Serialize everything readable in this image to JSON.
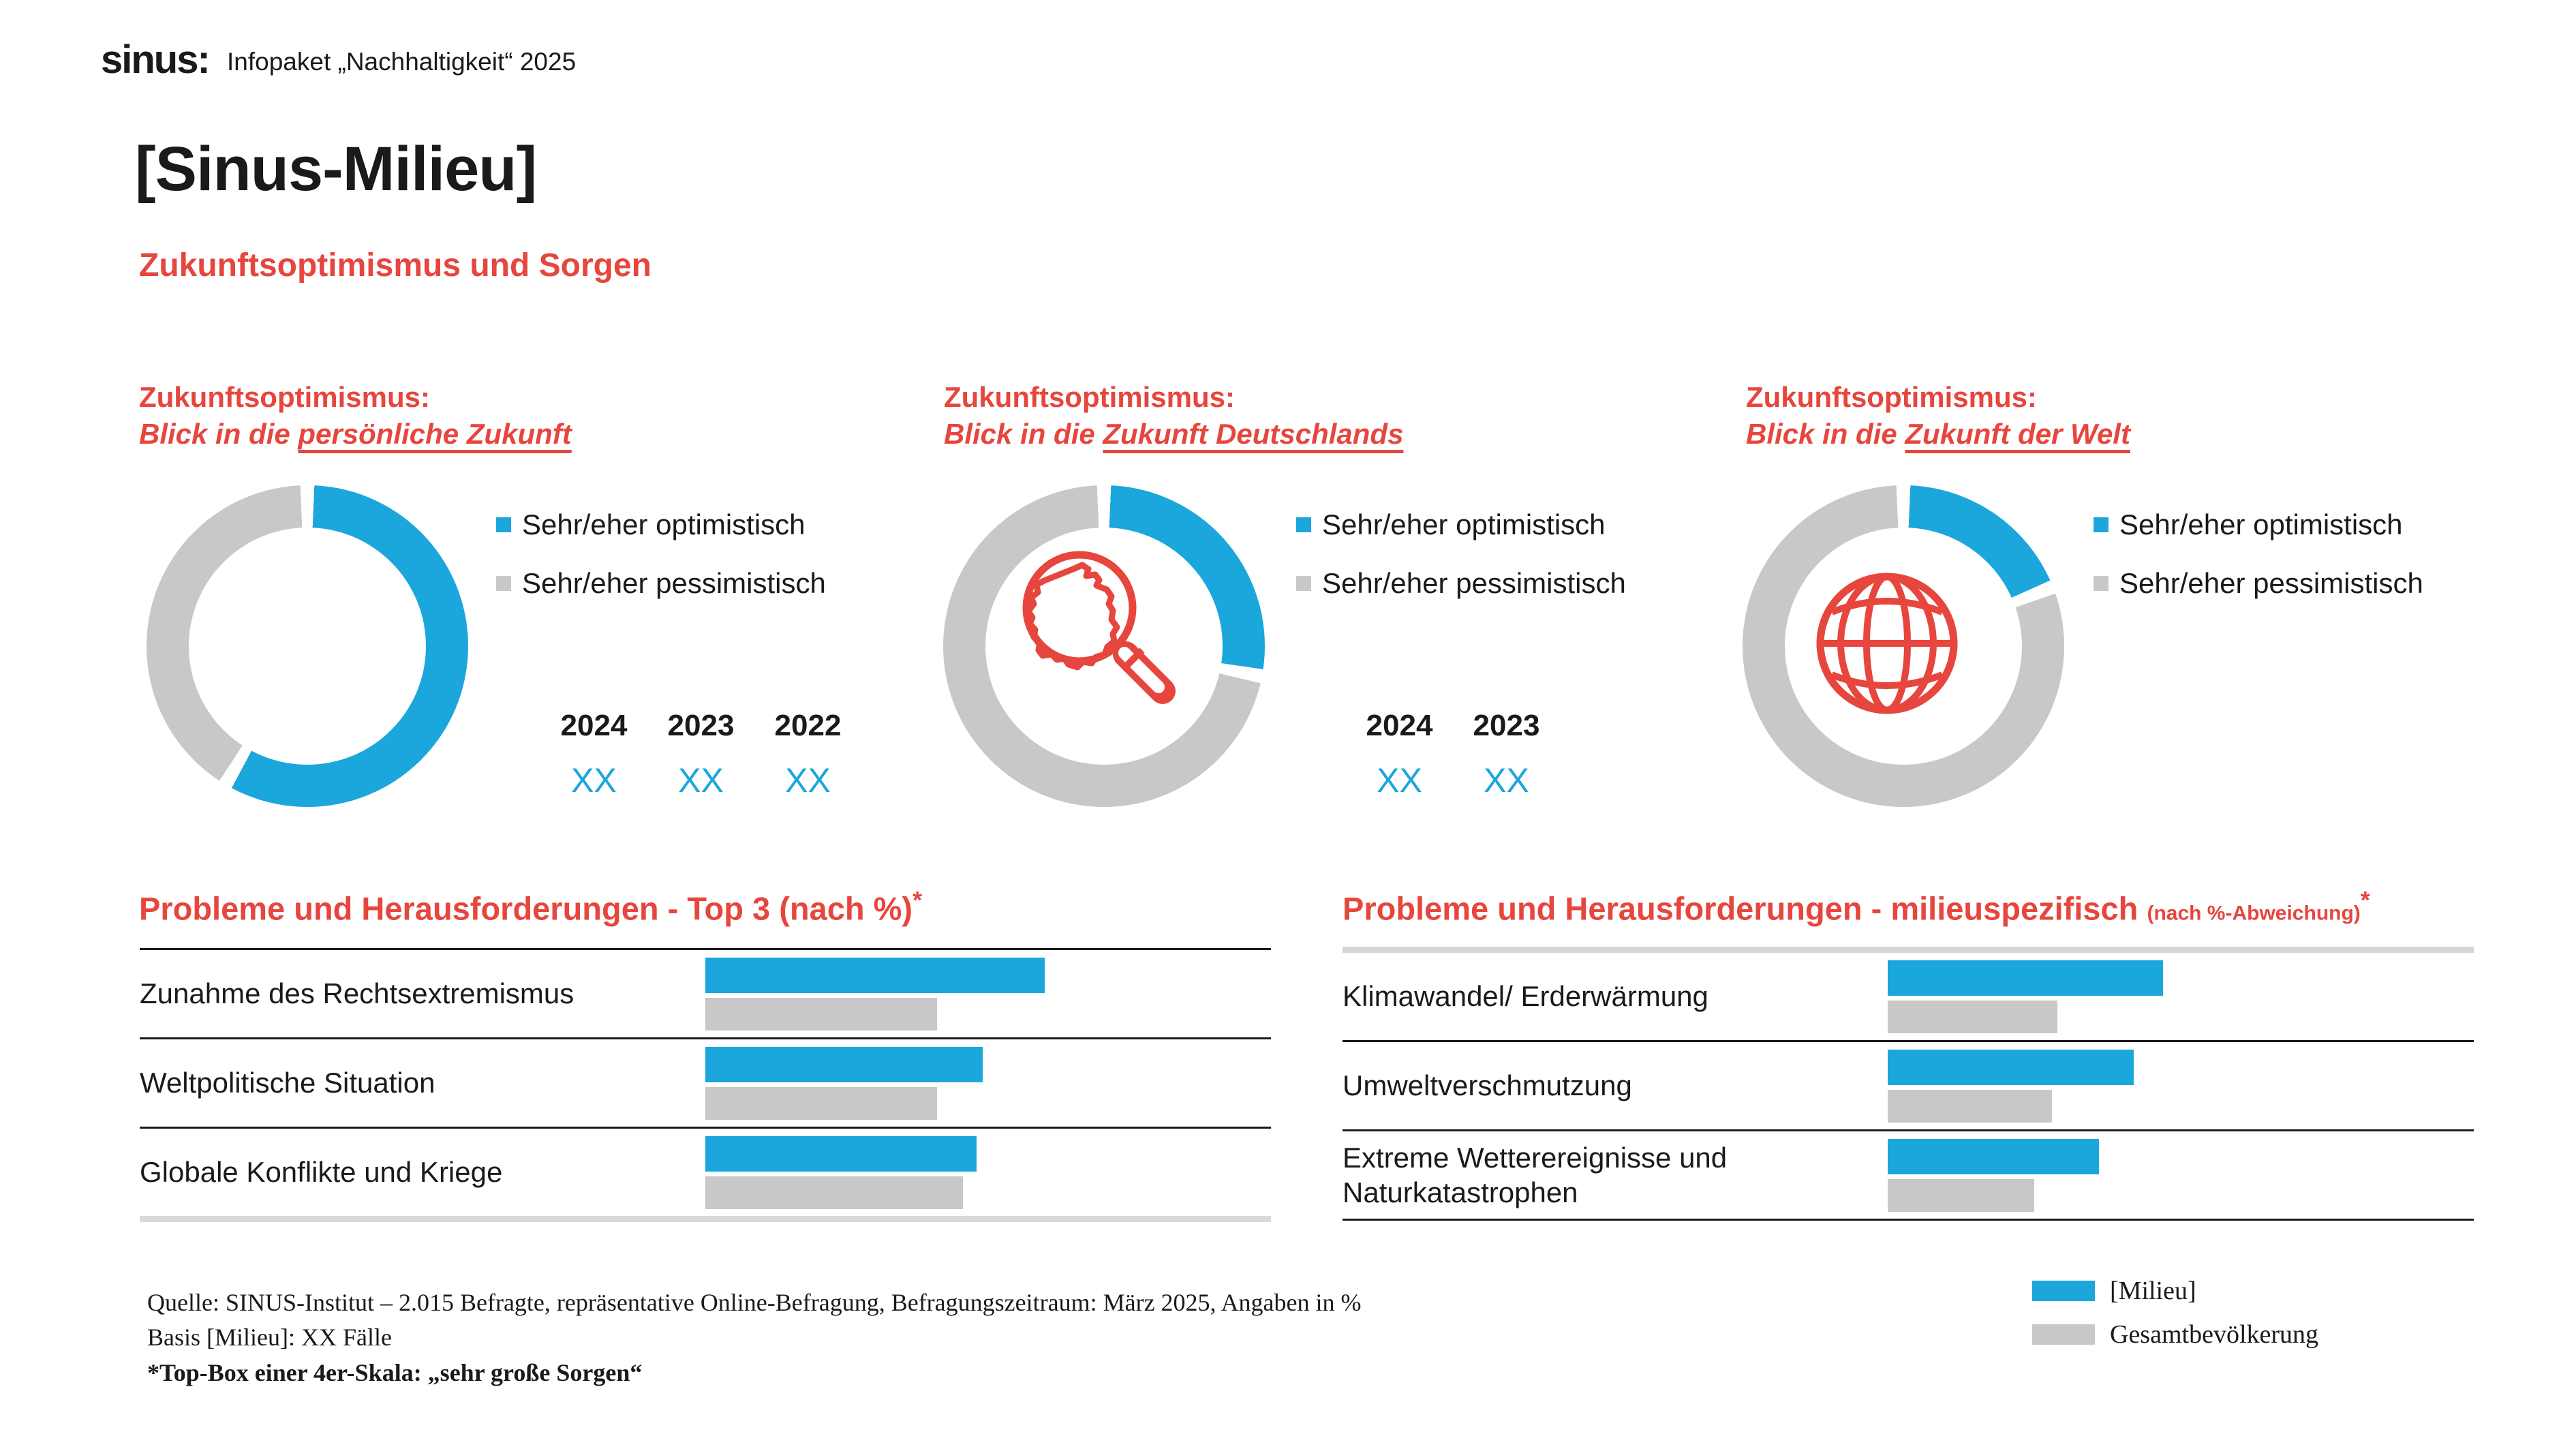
{
  "colors": {
    "blue": "#1BA6DC",
    "gray": "#C8C8C8",
    "red": "#E6463D",
    "text": "#1A1A1A"
  },
  "header": {
    "logo": "sinus:",
    "subtitle": "Infopaket „Nachhaltigkeit“ 2025"
  },
  "title": "[Sinus-Milieu]",
  "subtitle": "Zukunftsoptimismus und Sorgen",
  "donut_legend": {
    "optimistic": "Sehr/eher optimistisch",
    "pessimistic": "Sehr/eher pessimistisch"
  },
  "donuts": [
    {
      "heading1": "Zukunftsoptimismus:",
      "heading2_prefix": "Blick in die ",
      "heading2_underline": "persönliche Zukunft",
      "optimistic_pct": 58.5,
      "years": [
        {
          "year": "2024",
          "value": "XX"
        },
        {
          "year": "2023",
          "value": "XX"
        },
        {
          "year": "2022",
          "value": "XX"
        }
      ]
    },
    {
      "heading1": "Zukunftsoptimismus:",
      "heading2_prefix": "Blick in die ",
      "heading2_underline": "Zukunft Deutschlands",
      "optimistic_pct": 28,
      "icon": "germany-magnifier-icon",
      "years": [
        {
          "year": "2024",
          "value": "XX"
        },
        {
          "year": "2023",
          "value": "XX"
        }
      ]
    },
    {
      "heading1": "Zukunftsoptimismus:",
      "heading2_prefix": "Blick in die ",
      "heading2_underline": "Zukunft der Welt",
      "optimistic_pct": 19,
      "icon": "globe-icon",
      "years": []
    }
  ],
  "left_table": {
    "heading": "Probleme und Herausforderungen - Top 3 (nach %)",
    "asterisk": "*",
    "rows": [
      {
        "label": "Zunahme des Rechtsextremismus",
        "milieu": 60,
        "gesamt": 41
      },
      {
        "label": "Weltpolitische Situation",
        "milieu": 49,
        "gesamt": 41
      },
      {
        "label": "Globale Konflikte und Kriege",
        "milieu": 48,
        "gesamt": 45.5
      }
    ]
  },
  "right_table": {
    "heading": "Probleme und Herausforderungen - milieuspezifisch",
    "heading_small": "(nach %-Abweichung)",
    "asterisk": "*",
    "rows": [
      {
        "label": "Klimawandel/ Erderwärmung",
        "milieu": 47,
        "gesamt": 29
      },
      {
        "label": "Umweltverschmutzung",
        "milieu": 42,
        "gesamt": 28
      },
      {
        "label": "Extreme Wetterereignisse und Naturkatastrophen",
        "milieu": 36,
        "gesamt": 25
      }
    ]
  },
  "footer": {
    "line1": "Quelle: SINUS-Institut – 2.015 Befragte, repräsentative Online-Befragung, Befragungszeitraum: März 2025, Angaben in %",
    "line2": "Basis [Milieu]: XX Fälle",
    "line3": "*Top-Box einer 4er-Skala: „sehr große Sorgen“"
  },
  "bottom_legend": {
    "milieu": "[Milieu]",
    "gesamt": "Gesamtbevölkerung"
  },
  "chart_data": [
    {
      "type": "pie",
      "title": "Zukunftsoptimismus: Blick in die persönliche Zukunft",
      "labels": [
        "Sehr/eher optimistisch",
        "Sehr/eher pessimistisch"
      ],
      "values_visual_pct": [
        58.5,
        41.5
      ],
      "data_labels": {
        "2024": "XX",
        "2023": "XX",
        "2022": "XX"
      },
      "legend_position": "right"
    },
    {
      "type": "pie",
      "title": "Zukunftsoptimismus: Blick in die Zukunft Deutschlands",
      "labels": [
        "Sehr/eher optimistisch",
        "Sehr/eher pessimistisch"
      ],
      "values_visual_pct": [
        28,
        72
      ],
      "data_labels": {
        "2024": "XX",
        "2023": "XX"
      },
      "legend_position": "right"
    },
    {
      "type": "pie",
      "title": "Zukunftsoptimismus: Blick in die Zukunft der Welt",
      "labels": [
        "Sehr/eher optimistisch",
        "Sehr/eher pessimistisch"
      ],
      "values_visual_pct": [
        19,
        81
      ],
      "legend_position": "right"
    },
    {
      "type": "bar",
      "title": "Probleme und Herausforderungen - Top 3 (nach %)*",
      "categories": [
        "Zunahme des Rechtsextremismus",
        "Weltpolitische Situation",
        "Globale Konflikte und Kriege"
      ],
      "series": [
        {
          "name": "[Milieu]",
          "values_visual": [
            60,
            49,
            48
          ]
        },
        {
          "name": "Gesamtbevölkerung",
          "values_visual": [
            41,
            41,
            45.5
          ]
        }
      ],
      "orientation": "horizontal"
    },
    {
      "type": "bar",
      "title": "Probleme und Herausforderungen - milieuspezifisch (nach %-Abweichung)*",
      "categories": [
        "Klimawandel/ Erderwärmung",
        "Umweltverschmutzung",
        "Extreme Wetterereignisse und Naturkatastrophen"
      ],
      "series": [
        {
          "name": "[Milieu]",
          "values_visual": [
            47,
            42,
            36
          ]
        },
        {
          "name": "Gesamtbevölkerung",
          "values_visual": [
            29,
            28,
            25
          ]
        }
      ],
      "orientation": "horizontal"
    }
  ]
}
